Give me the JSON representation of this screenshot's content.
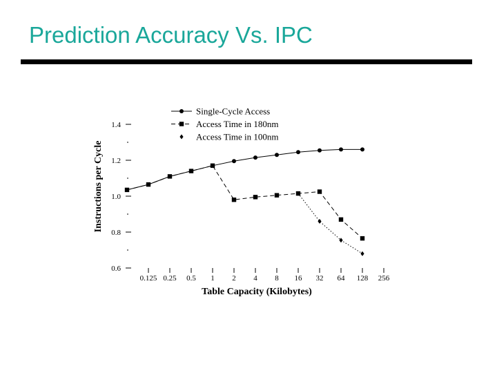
{
  "slide": {
    "title": "Prediction Accuracy Vs. IPC",
    "title_color": "#1aa79a",
    "rule_color": "#000000"
  },
  "chart_data": {
    "type": "line",
    "title": "",
    "xlabel": "Table Capacity (Kilobytes)",
    "ylabel": "Instructions per Cycle",
    "categories": [
      "0.125",
      "0.25",
      "0.5",
      "1",
      "2",
      "4",
      "8",
      "16",
      "32",
      "64",
      "128",
      "256"
    ],
    "ylim": [
      0.6,
      1.4
    ],
    "yticks": [
      "0.6",
      "0.8",
      "1.0",
      "1.2",
      "1.4"
    ],
    "grid": false,
    "legend_position": "top-center",
    "series": [
      {
        "name": "Single-Cycle Access",
        "marker": "circle",
        "dash": "solid",
        "x": [
          -1,
          0,
          1,
          2,
          3,
          4,
          5,
          6,
          7,
          8,
          9,
          10
        ],
        "values": [
          1.035,
          1.065,
          1.11,
          1.14,
          1.17,
          1.195,
          1.215,
          1.23,
          1.245,
          1.255,
          1.26,
          1.26
        ]
      },
      {
        "name": "Access Time in 180nm",
        "marker": "square",
        "dash": "dashed",
        "x": [
          -1,
          0,
          1,
          2,
          3,
          4,
          5,
          6,
          7,
          8,
          9,
          10
        ],
        "values": [
          1.035,
          1.065,
          1.11,
          1.14,
          1.17,
          0.98,
          0.995,
          1.005,
          1.015,
          1.025,
          0.87,
          0.765
        ]
      },
      {
        "name": "Access Time in 100nm",
        "marker": "diamond",
        "dash": "dotted",
        "x": [
          7,
          8,
          9,
          10
        ],
        "values": [
          1.015,
          0.86,
          0.755,
          0.68
        ]
      }
    ]
  }
}
